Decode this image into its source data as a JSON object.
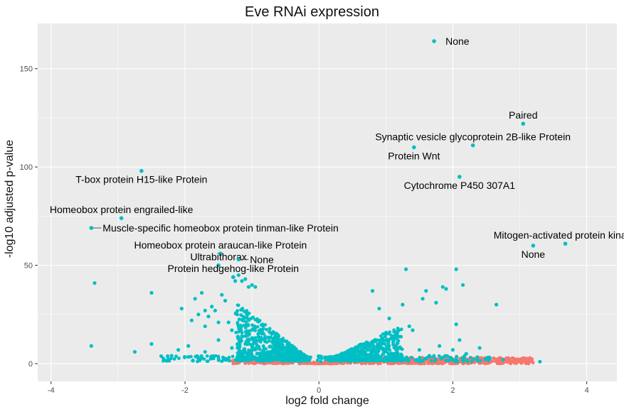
{
  "chart_data": {
    "type": "scatter",
    "title": "Eve RNAi expression",
    "xlabel": "log2 fold change",
    "ylabel": "-log10 adjusted p-value",
    "xlim": [
      -4.2,
      4.45
    ],
    "ylim": [
      -9,
      173
    ],
    "x_ticks": [
      -4,
      -2,
      0,
      2,
      4
    ],
    "y_ticks": [
      0,
      50,
      100,
      150
    ],
    "grid": true,
    "legend": "none",
    "colors": {
      "significant": "#00bfc4",
      "not_significant": "#f8766d",
      "panel": "#ebebeb",
      "grid": "#ffffff"
    },
    "labeled_points": [
      {
        "label": "None",
        "x": 1.72,
        "y": 164,
        "side": "right"
      },
      {
        "label": "Paired",
        "x": 3.05,
        "y": 122,
        "side": "above"
      },
      {
        "label": "Synaptic vesicle glycoprotein 2B-like Protein",
        "x": 2.3,
        "y": 111,
        "side": "above"
      },
      {
        "label": "Protein Wnt",
        "x": 1.42,
        "y": 110,
        "side": "below"
      },
      {
        "label": "Cytochrome P450 307A1",
        "x": 2.1,
        "y": 95,
        "side": "below"
      },
      {
        "label": "T-box protein H15-like Protein",
        "x": -2.65,
        "y": 98,
        "side": "below"
      },
      {
        "label": "Homeobox protein engrailed-like",
        "x": -2.95,
        "y": 74,
        "side": "above"
      },
      {
        "label": "Muscle-specific homeobox protein tinman-like Protein",
        "x": -3.4,
        "y": 69,
        "side": "right"
      },
      {
        "label": "Homeobox protein araucan-like Protein",
        "x": -1.47,
        "y": 56,
        "side": "above"
      },
      {
        "label": "Mitogen-activated protein kinase",
        "x": 3.68,
        "y": 61,
        "side": "above"
      },
      {
        "label": "None",
        "x": 3.2,
        "y": 60,
        "side": "below"
      },
      {
        "label": "Ultrabithorax",
        "x": -1.5,
        "y": 50,
        "side": "above"
      },
      {
        "label": "None",
        "x": -1.2,
        "y": 53,
        "side": "right"
      },
      {
        "label": "Protein hedgehog-like Protein",
        "x": -1.28,
        "y": 44,
        "side": "above"
      }
    ],
    "other_significant_points": [
      [
        1.3,
        48
      ],
      [
        2.05,
        48
      ],
      [
        -1.0,
        40
      ],
      [
        -3.35,
        41
      ],
      [
        2.15,
        40
      ],
      [
        1.6,
        37
      ],
      [
        -1.2,
        45
      ],
      [
        -1.1,
        43
      ],
      [
        -1.15,
        42
      ],
      [
        -1.25,
        42
      ],
      [
        -1.05,
        39
      ],
      [
        -0.95,
        39
      ],
      [
        0.8,
        37
      ],
      [
        1.85,
        39
      ],
      [
        1.9,
        38
      ],
      [
        -2.5,
        36
      ],
      [
        -1.75,
        36
      ],
      [
        -1.85,
        33
      ],
      [
        -1.45,
        35
      ],
      [
        -1.4,
        32
      ],
      [
        -1.7,
        27
      ],
      [
        -1.55,
        27
      ],
      [
        -1.65,
        24
      ],
      [
        -2.05,
        28
      ],
      [
        -1.5,
        21
      ],
      [
        -1.35,
        21
      ],
      [
        -1.2,
        19
      ],
      [
        1.25,
        30
      ],
      [
        1.55,
        33
      ],
      [
        1.75,
        31
      ],
      [
        0.9,
        28
      ],
      [
        2.65,
        30
      ],
      [
        -1.6,
        29
      ],
      [
        -1.8,
        25
      ],
      [
        -1.9,
        22
      ],
      [
        -1.7,
        19
      ],
      [
        -1.3,
        17
      ],
      [
        1.05,
        23
      ],
      [
        1.35,
        19
      ],
      [
        1.4,
        17
      ],
      [
        2.05,
        20
      ],
      [
        -3.4,
        9
      ],
      [
        -2.75,
        6
      ],
      [
        -2.5,
        10
      ],
      [
        -2.1,
        7
      ],
      [
        -2.2,
        4
      ],
      [
        -1.95,
        9
      ],
      [
        -1.7,
        6
      ],
      [
        -1.5,
        12
      ],
      [
        -1.3,
        8
      ],
      [
        1.5,
        7
      ],
      [
        1.65,
        4
      ],
      [
        1.8,
        9
      ],
      [
        2.0,
        7
      ],
      [
        2.1,
        12
      ],
      [
        2.2,
        5
      ],
      [
        2.4,
        8
      ],
      [
        2.55,
        3
      ],
      [
        3.3,
        1
      ],
      [
        2.75,
        2
      ],
      [
        1.15,
        15
      ],
      [
        0.95,
        13
      ],
      [
        -1.15,
        14
      ],
      [
        -0.95,
        13
      ]
    ],
    "bulk_description": "dense V-shaped cloud of significant genes for |log2FC| between ~0.4 and ~1.2 with p up to ~25",
    "not_significant_band": {
      "x_range": [
        -1.3,
        3.2
      ],
      "y_range": [
        0,
        3
      ]
    }
  }
}
